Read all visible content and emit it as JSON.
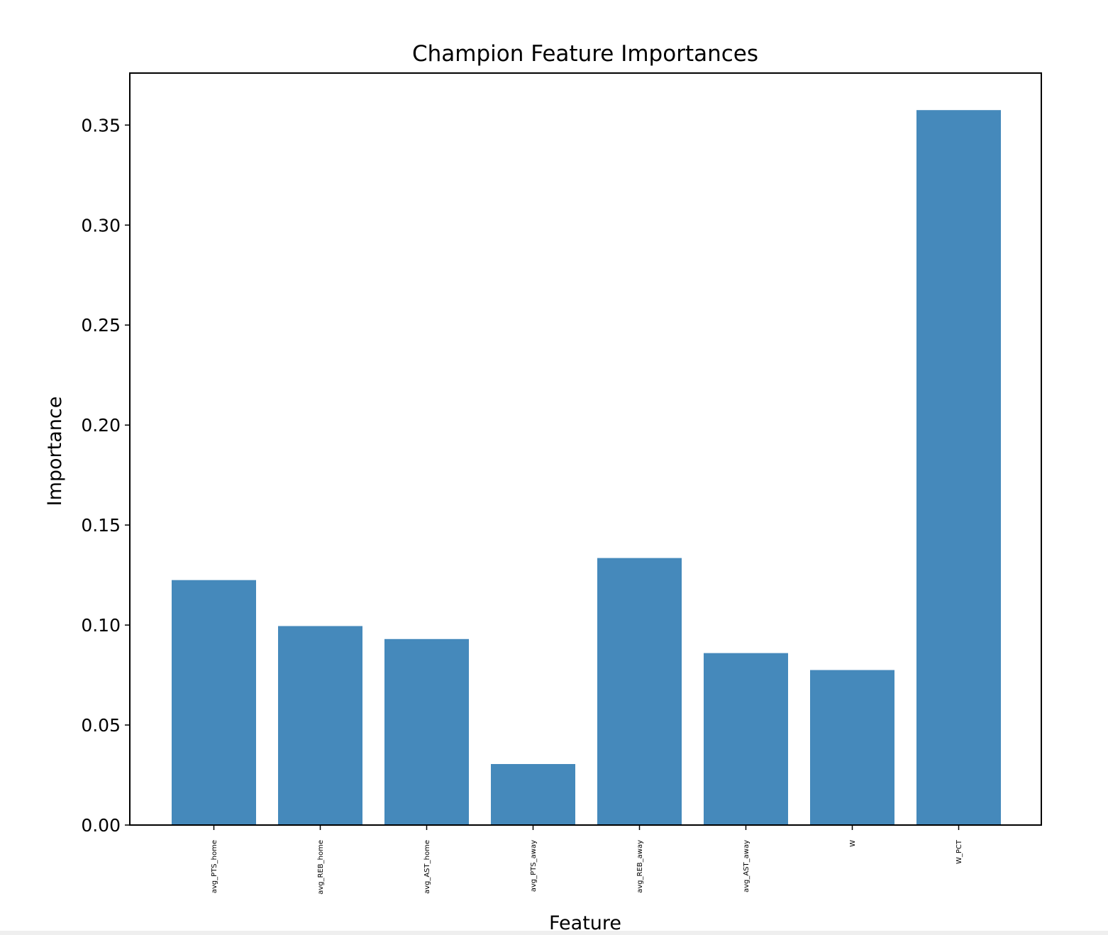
{
  "chart_data": {
    "type": "bar",
    "title": "Champion Feature Importances",
    "xlabel": "Feature",
    "ylabel": "Importance",
    "categories": [
      "avg_PTS_home",
      "avg_REB_home",
      "avg_AST_home",
      "avg_PTS_away",
      "avg_REB_away",
      "avg_AST_away",
      "W",
      "W_PCT"
    ],
    "values": [
      0.1225,
      0.0995,
      0.093,
      0.0305,
      0.1335,
      0.086,
      0.0775,
      0.3575
    ],
    "ylim": [
      0,
      0.376
    ],
    "yticks": [
      0.0,
      0.05,
      0.1,
      0.15,
      0.2,
      0.25,
      0.3,
      0.35
    ],
    "ytick_labels": [
      "0.00",
      "0.05",
      "0.10",
      "0.15",
      "0.20",
      "0.25",
      "0.30",
      "0.35"
    ],
    "grid": false,
    "bar_color": "#4589bb"
  }
}
